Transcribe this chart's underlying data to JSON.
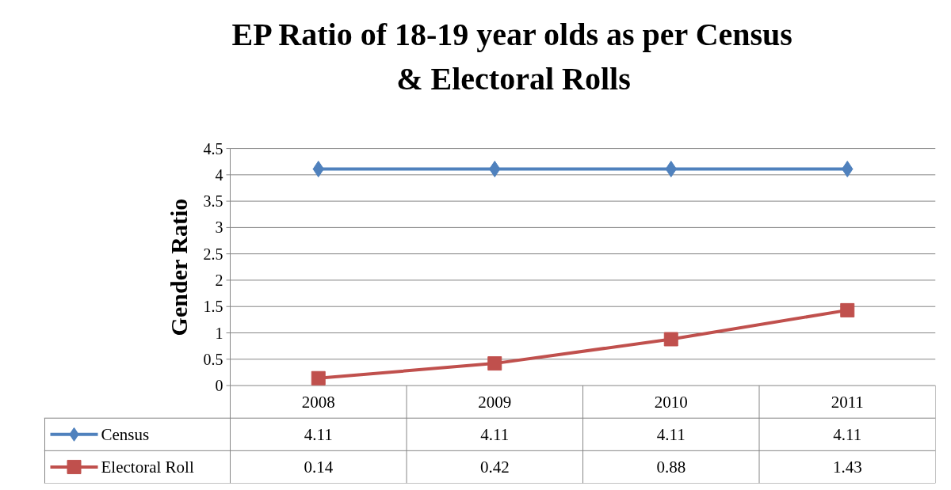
{
  "chart_data": {
    "type": "line",
    "title": "EP Ratio of 18-19 year olds as per Census\n& Electoral Rolls",
    "ylabel": "Gender Ratio",
    "categories": [
      "2008",
      "2009",
      "2010",
      "2011"
    ],
    "series": [
      {
        "name": "Census",
        "color": "#4f81bd",
        "marker": "diamond",
        "values": [
          4.11,
          4.11,
          4.11,
          4.11
        ]
      },
      {
        "name": "Electoral Roll",
        "color": "#c0504d",
        "marker": "square",
        "values": [
          0.14,
          0.42,
          0.88,
          1.43
        ]
      }
    ],
    "ylim": [
      0,
      4.5
    ],
    "yticks": [
      0,
      0.5,
      1,
      1.5,
      2,
      2.5,
      3,
      3.5,
      4,
      4.5
    ],
    "grid": "y",
    "legend": "bottom left",
    "data_labels": true
  }
}
